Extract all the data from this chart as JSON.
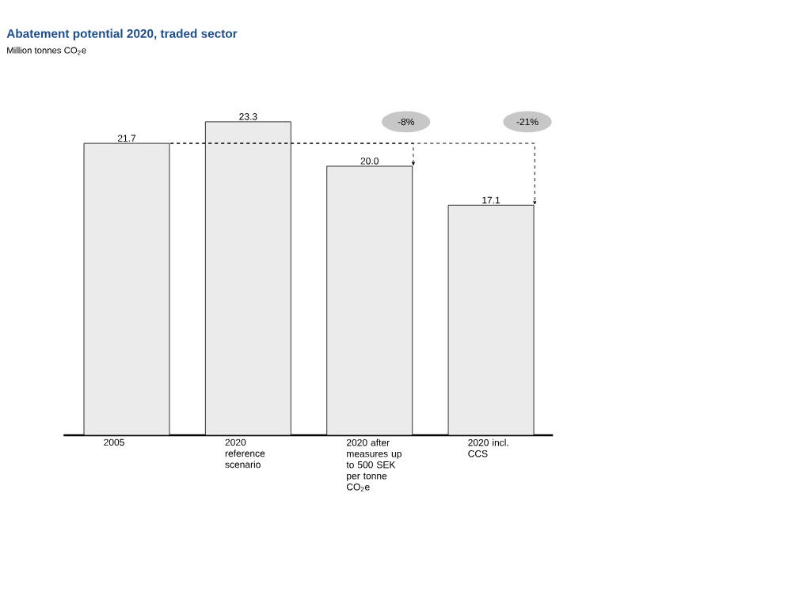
{
  "chart_data": {
    "type": "bar",
    "title": "Abatement potential 2020, traded sector",
    "subtitle": "Million tonnes CO$_{2}$e",
    "categories": [
      "2005",
      "2020 reference scenario",
      "2020 after measures up to 500 SEK per tonne CO$_{2}$e",
      "2020 incl. CCS"
    ],
    "values": [
      21.7,
      23.3,
      20.0,
      17.1
    ],
    "color": "#ebebeb",
    "value_labels": [
      "21.7",
      "23.3",
      "20.0",
      "17.1"
    ],
    "annotations": [
      "-8%",
      "-21%"
    ]
  }
}
